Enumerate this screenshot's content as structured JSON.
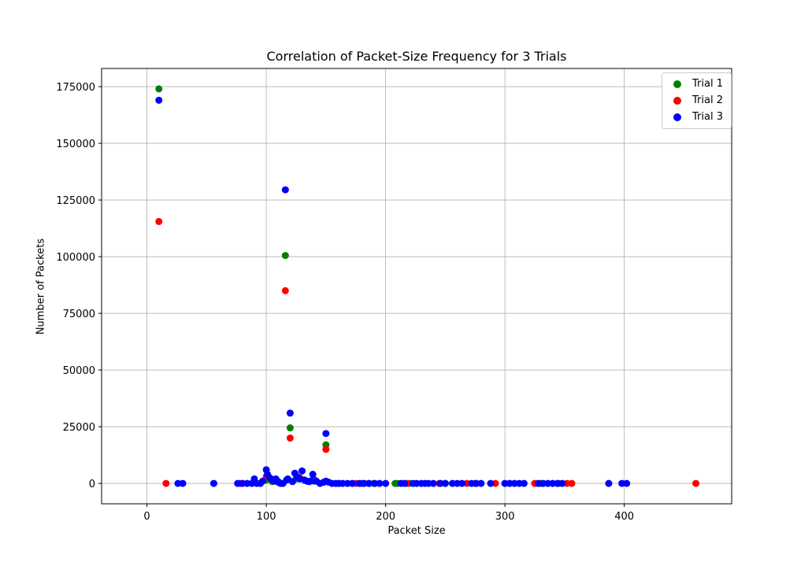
{
  "chart_data": {
    "type": "scatter",
    "title": "Correlation of Packet-Size Frequency for 3 Trials",
    "xlabel": "Packet Size",
    "ylabel": "Number of Packets",
    "xlim": [
      -38,
      490
    ],
    "ylim": [
      -9000,
      183000
    ],
    "xticks": [
      0,
      100,
      200,
      300,
      400
    ],
    "yticks": [
      0,
      25000,
      50000,
      75000,
      100000,
      125000,
      150000,
      175000
    ],
    "grid": true,
    "legend_position": "top-right",
    "series": [
      {
        "name": "Trial 1",
        "color": "#008000",
        "points": [
          [
            10,
            174000
          ],
          [
            116,
            100500
          ],
          [
            120,
            24500
          ],
          [
            150,
            17000
          ],
          [
            80,
            0
          ],
          [
            95,
            0
          ],
          [
            100,
            1500
          ],
          [
            105,
            800
          ],
          [
            110,
            500
          ],
          [
            125,
            2000
          ],
          [
            140,
            1000
          ],
          [
            160,
            0
          ],
          [
            180,
            0
          ],
          [
            186,
            0
          ],
          [
            190,
            0
          ],
          [
            208,
            0
          ],
          [
            210,
            0
          ],
          [
            220,
            0
          ],
          [
            250,
            0
          ],
          [
            275,
            0
          ],
          [
            300,
            0
          ],
          [
            330,
            0
          ],
          [
            345,
            0
          ]
        ]
      },
      {
        "name": "Trial 2",
        "color": "#ff0000",
        "points": [
          [
            10,
            115500
          ],
          [
            116,
            85000
          ],
          [
            120,
            20000
          ],
          [
            150,
            15000
          ],
          [
            16,
            0
          ],
          [
            78,
            0
          ],
          [
            100,
            3000
          ],
          [
            128,
            2500
          ],
          [
            140,
            1800
          ],
          [
            175,
            0
          ],
          [
            218,
            0
          ],
          [
            245,
            0
          ],
          [
            268,
            0
          ],
          [
            292,
            0
          ],
          [
            325,
            0
          ],
          [
            352,
            0
          ],
          [
            356,
            0
          ],
          [
            460,
            0
          ]
        ]
      },
      {
        "name": "Trial 3",
        "color": "#0000ff",
        "points": [
          [
            10,
            169000
          ],
          [
            116,
            129500
          ],
          [
            120,
            31000
          ],
          [
            150,
            22000
          ],
          [
            26,
            0
          ],
          [
            30,
            0
          ],
          [
            56,
            0
          ],
          [
            76,
            0
          ],
          [
            80,
            0
          ],
          [
            84,
            0
          ],
          [
            88,
            0
          ],
          [
            90,
            2000
          ],
          [
            92,
            0
          ],
          [
            95,
            0
          ],
          [
            97,
            1000
          ],
          [
            100,
            6000
          ],
          [
            101,
            4000
          ],
          [
            103,
            2500
          ],
          [
            105,
            1500
          ],
          [
            107,
            1000
          ],
          [
            108,
            2000
          ],
          [
            110,
            800
          ],
          [
            112,
            0
          ],
          [
            114,
            0
          ],
          [
            117,
            1500
          ],
          [
            118,
            2000
          ],
          [
            122,
            800
          ],
          [
            124,
            4500
          ],
          [
            126,
            3000
          ],
          [
            128,
            2000
          ],
          [
            130,
            5500
          ],
          [
            132,
            1500
          ],
          [
            134,
            1000
          ],
          [
            136,
            800
          ],
          [
            138,
            1200
          ],
          [
            139,
            4000
          ],
          [
            142,
            1000
          ],
          [
            145,
            0
          ],
          [
            148,
            500
          ],
          [
            150,
            1000
          ],
          [
            152,
            600
          ],
          [
            155,
            0
          ],
          [
            158,
            0
          ],
          [
            161,
            0
          ],
          [
            164,
            0
          ],
          [
            168,
            0
          ],
          [
            172,
            0
          ],
          [
            178,
            0
          ],
          [
            182,
            0
          ],
          [
            186,
            0
          ],
          [
            191,
            0
          ],
          [
            195,
            0
          ],
          [
            200,
            0
          ],
          [
            213,
            0
          ],
          [
            216,
            0
          ],
          [
            223,
            0
          ],
          [
            226,
            0
          ],
          [
            230,
            0
          ],
          [
            233,
            0
          ],
          [
            236,
            0
          ],
          [
            240,
            0
          ],
          [
            246,
            0
          ],
          [
            250,
            0
          ],
          [
            256,
            0
          ],
          [
            260,
            0
          ],
          [
            264,
            0
          ],
          [
            272,
            0
          ],
          [
            276,
            0
          ],
          [
            280,
            0
          ],
          [
            288,
            0
          ],
          [
            300,
            0
          ],
          [
            304,
            0
          ],
          [
            308,
            0
          ],
          [
            312,
            0
          ],
          [
            316,
            0
          ],
          [
            328,
            0
          ],
          [
            332,
            0
          ],
          [
            336,
            0
          ],
          [
            340,
            0
          ],
          [
            344,
            0
          ],
          [
            348,
            0
          ],
          [
            387,
            0
          ],
          [
            398,
            0
          ],
          [
            402,
            0
          ]
        ]
      }
    ]
  }
}
